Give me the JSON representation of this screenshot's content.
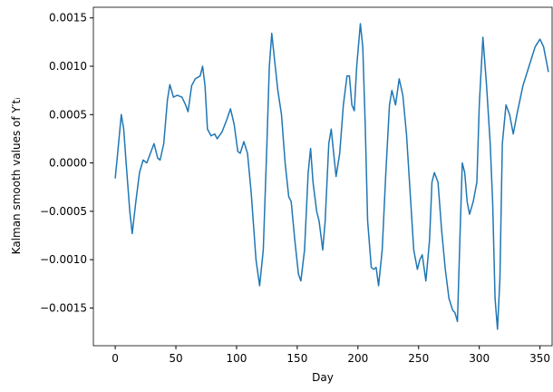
{
  "chart_data": {
    "type": "line",
    "xlabel": "Day",
    "ylabel": "Kalman smooth values of Y′tᵢ",
    "color": "#1f77b4",
    "xlim": [
      -18,
      360
    ],
    "ylim": [
      -0.00189,
      0.00161
    ],
    "xticks": [
      0,
      50,
      100,
      150,
      200,
      250,
      300,
      350
    ],
    "yticks": [
      {
        "value": -0.0015,
        "label": "−0.0015"
      },
      {
        "value": -0.001,
        "label": "−0.0010"
      },
      {
        "value": -0.0005,
        "label": "−0.0005"
      },
      {
        "value": 0,
        "label": "0.0000"
      },
      {
        "value": 0.0005,
        "label": "0.0005"
      },
      {
        "value": 0.001,
        "label": "0.0010"
      },
      {
        "value": 0.0015,
        "label": "0.0015"
      }
    ],
    "x": [
      0,
      2,
      5,
      7,
      9,
      12,
      14,
      17,
      20,
      23,
      26,
      29,
      32,
      35,
      37,
      40,
      43,
      45,
      48,
      51,
      55,
      58,
      60,
      63,
      66,
      70,
      72,
      74,
      76,
      79,
      82,
      84,
      88,
      92,
      95,
      98,
      101,
      103,
      106,
      109,
      112,
      116,
      119,
      122,
      125,
      127,
      129,
      131,
      134,
      137,
      140,
      143,
      145,
      148,
      151,
      153,
      156,
      159,
      161,
      163,
      166,
      168,
      171,
      173,
      176,
      178,
      180,
      182,
      185,
      188,
      191,
      193,
      195,
      197,
      199,
      202,
      204,
      206,
      208,
      211,
      213,
      215,
      217,
      220,
      223,
      226,
      228,
      231,
      234,
      237,
      240,
      243,
      246,
      249,
      251,
      253,
      256,
      259,
      261,
      263,
      266,
      269,
      272,
      275,
      278,
      280,
      282,
      284,
      286,
      288,
      290,
      292,
      295,
      298,
      300,
      303,
      306,
      309,
      311,
      313,
      315,
      317,
      319,
      322,
      325,
      328,
      331,
      336,
      341,
      346,
      350,
      353,
      357
    ],
    "values": [
      -0.00016,
      0.0001,
      0.0005,
      0.00035,
      0.0,
      -0.0005,
      -0.00073,
      -0.0004,
      -0.0001,
      3e-05,
      0.0,
      0.0001,
      0.0002,
      5e-05,
      3e-05,
      0.0002,
      0.00065,
      0.00081,
      0.00068,
      0.0007,
      0.00068,
      0.0006,
      0.00053,
      0.0008,
      0.00087,
      0.0009,
      0.001,
      0.0008,
      0.00035,
      0.00028,
      0.0003,
      0.00025,
      0.00032,
      0.00045,
      0.00056,
      0.0004,
      0.00012,
      0.0001,
      0.00022,
      0.0001,
      -0.0003,
      -0.001,
      -0.00127,
      -0.0009,
      0.0002,
      0.001,
      0.00134,
      0.0011,
      0.00075,
      0.0005,
      0.0,
      -0.00035,
      -0.0004,
      -0.0008,
      -0.00115,
      -0.00122,
      -0.0009,
      -0.0001,
      0.00015,
      -0.0002,
      -0.0005,
      -0.0006,
      -0.0009,
      -0.0006,
      0.0002,
      0.00035,
      0.0001,
      -0.00014,
      0.0001,
      0.0006,
      0.0009,
      0.0009,
      0.0006,
      0.00054,
      0.001,
      0.00144,
      0.0012,
      0.0004,
      -0.0006,
      -0.00108,
      -0.0011,
      -0.00108,
      -0.00127,
      -0.0009,
      -0.0001,
      0.0006,
      0.00075,
      0.0006,
      0.00087,
      0.0007,
      0.0003,
      -0.0003,
      -0.0009,
      -0.0011,
      -0.001,
      -0.00095,
      -0.00122,
      -0.0008,
      -0.0002,
      -0.0001,
      -0.0002,
      -0.0007,
      -0.0011,
      -0.0014,
      -0.00152,
      -0.00155,
      -0.00164,
      -0.0008,
      0.0,
      -0.0001,
      -0.0004,
      -0.00053,
      -0.0004,
      -0.0002,
      0.0006,
      0.0013,
      0.0008,
      0.0002,
      -0.0004,
      -0.0014,
      -0.00172,
      -0.0012,
      0.0002,
      0.0006,
      0.0005,
      0.0003,
      0.0005,
      0.0008,
      0.001,
      0.0012,
      0.00128,
      0.0012,
      0.00094
    ]
  }
}
